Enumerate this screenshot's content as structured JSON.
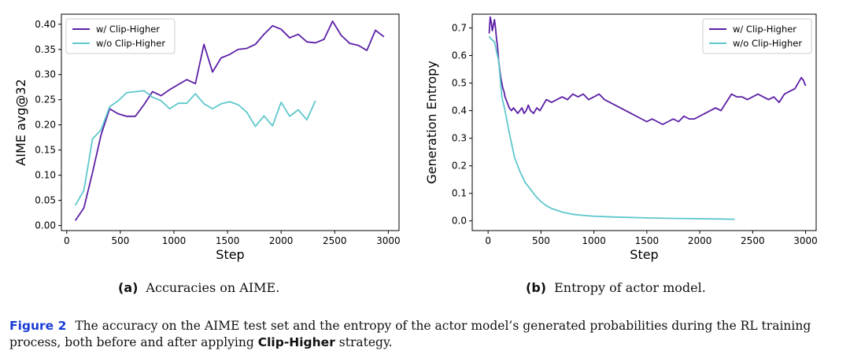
{
  "colors": {
    "with": "#5b1fa6",
    "without": "#5ec7cc"
  },
  "subcaptions": {
    "a": {
      "label": "(a)",
      "text": "Accuracies on AIME."
    },
    "b": {
      "label": "(b)",
      "text": "Entropy of actor model."
    }
  },
  "caption": {
    "figure_label": "Figure 2",
    "text_before": "The accuracy on the AIME test set and the entropy of the actor model’s generated probabilities during the RL training process, both before and after applying",
    "strong": "Clip-Higher",
    "text_after": "strategy."
  },
  "chart_data": [
    {
      "type": "line",
      "xlabel": "Step",
      "ylabel": "AIME avg@32",
      "xlim": [
        -50,
        3100
      ],
      "ylim": [
        -0.01,
        0.42
      ],
      "xticks": [
        0,
        500,
        1000,
        1500,
        2000,
        2500,
        3000
      ],
      "yticks": [
        0.0,
        0.05,
        0.1,
        0.15,
        0.2,
        0.25,
        0.3,
        0.35,
        0.4
      ],
      "ytick_labels": [
        "0.00",
        "0.05",
        "0.10",
        "0.15",
        "0.20",
        "0.25",
        "0.30",
        "0.35",
        "0.40"
      ],
      "grid": false,
      "legend": "top-left",
      "series": [
        {
          "name": "w/ Clip-Higher",
          "x": [
            80,
            160,
            240,
            320,
            400,
            480,
            560,
            640,
            720,
            800,
            880,
            960,
            1040,
            1120,
            1200,
            1280,
            1360,
            1440,
            1520,
            1600,
            1680,
            1760,
            1840,
            1920,
            2000,
            2080,
            2160,
            2240,
            2320,
            2400,
            2480,
            2560,
            2640,
            2720,
            2800,
            2880,
            2960
          ],
          "y": [
            0.01,
            0.035,
            0.105,
            0.18,
            0.232,
            0.222,
            0.217,
            0.217,
            0.24,
            0.266,
            0.258,
            0.27,
            0.28,
            0.29,
            0.282,
            0.36,
            0.305,
            0.333,
            0.34,
            0.35,
            0.352,
            0.36,
            0.38,
            0.397,
            0.39,
            0.373,
            0.38,
            0.365,
            0.363,
            0.37,
            0.406,
            0.378,
            0.362,
            0.358,
            0.348,
            0.388,
            0.375
          ]
        },
        {
          "name": "w/o Clip-Higher",
          "x": [
            80,
            160,
            240,
            320,
            400,
            480,
            560,
            640,
            720,
            800,
            880,
            960,
            1040,
            1120,
            1200,
            1280,
            1360,
            1440,
            1520,
            1600,
            1680,
            1760,
            1840,
            1920,
            2000,
            2080,
            2160,
            2240,
            2320
          ],
          "y": [
            0.04,
            0.07,
            0.172,
            0.19,
            0.236,
            0.248,
            0.264,
            0.266,
            0.268,
            0.255,
            0.248,
            0.232,
            0.243,
            0.243,
            0.262,
            0.242,
            0.232,
            0.242,
            0.246,
            0.24,
            0.225,
            0.197,
            0.218,
            0.198,
            0.245,
            0.217,
            0.23,
            0.21,
            0.248
          ]
        }
      ]
    },
    {
      "type": "line",
      "xlabel": "Step",
      "ylabel": "Generation Entropy",
      "xlim": [
        -150,
        3100
      ],
      "ylim": [
        -0.035,
        0.75
      ],
      "xticks": [
        0,
        500,
        1000,
        1500,
        2000,
        2500,
        3000
      ],
      "yticks": [
        0.0,
        0.1,
        0.2,
        0.3,
        0.4,
        0.5,
        0.6,
        0.7
      ],
      "ytick_labels": [
        "0.0",
        "0.1",
        "0.2",
        "0.3",
        "0.4",
        "0.5",
        "0.6",
        "0.7"
      ],
      "grid": false,
      "legend": "top-right",
      "series": [
        {
          "name": "w/ Clip-Higher",
          "x": [
            10,
            20,
            30,
            40,
            50,
            60,
            70,
            80,
            90,
            100,
            110,
            120,
            130,
            140,
            150,
            160,
            170,
            180,
            190,
            200,
            220,
            240,
            260,
            280,
            300,
            320,
            340,
            360,
            380,
            400,
            430,
            460,
            490,
            520,
            550,
            600,
            650,
            700,
            750,
            800,
            850,
            900,
            950,
            1000,
            1050,
            1100,
            1150,
            1200,
            1250,
            1300,
            1350,
            1400,
            1450,
            1500,
            1550,
            1600,
            1650,
            1700,
            1750,
            1800,
            1850,
            1900,
            1950,
            2000,
            2050,
            2100,
            2150,
            2200,
            2250,
            2300,
            2350,
            2400,
            2450,
            2500,
            2550,
            2600,
            2650,
            2700,
            2750,
            2800,
            2850,
            2900,
            2930,
            2960,
            2980,
            3000
          ],
          "y": [
            0.68,
            0.74,
            0.72,
            0.69,
            0.71,
            0.73,
            0.7,
            0.66,
            0.63,
            0.58,
            0.55,
            0.52,
            0.5,
            0.48,
            0.47,
            0.45,
            0.44,
            0.43,
            0.42,
            0.41,
            0.4,
            0.41,
            0.4,
            0.39,
            0.4,
            0.41,
            0.39,
            0.4,
            0.42,
            0.4,
            0.39,
            0.41,
            0.4,
            0.42,
            0.44,
            0.43,
            0.44,
            0.45,
            0.44,
            0.46,
            0.45,
            0.46,
            0.44,
            0.45,
            0.46,
            0.44,
            0.43,
            0.42,
            0.41,
            0.4,
            0.39,
            0.38,
            0.37,
            0.36,
            0.37,
            0.36,
            0.35,
            0.36,
            0.37,
            0.36,
            0.38,
            0.37,
            0.37,
            0.38,
            0.39,
            0.4,
            0.41,
            0.4,
            0.43,
            0.46,
            0.45,
            0.45,
            0.44,
            0.45,
            0.46,
            0.45,
            0.44,
            0.45,
            0.43,
            0.46,
            0.47,
            0.48,
            0.5,
            0.52,
            0.51,
            0.49
          ]
        },
        {
          "name": "w/o Clip-Higher",
          "x": [
            10,
            30,
            60,
            100,
            130,
            160,
            200,
            250,
            300,
            350,
            400,
            450,
            500,
            550,
            600,
            700,
            800,
            900,
            1000,
            1200,
            1500,
            1800,
            2000,
            2200,
            2330
          ],
          "y": [
            0.67,
            0.66,
            0.65,
            0.58,
            0.45,
            0.4,
            0.32,
            0.23,
            0.18,
            0.14,
            0.115,
            0.09,
            0.07,
            0.055,
            0.045,
            0.032,
            0.024,
            0.02,
            0.017,
            0.014,
            0.011,
            0.009,
            0.008,
            0.007,
            0.006
          ]
        }
      ]
    }
  ]
}
